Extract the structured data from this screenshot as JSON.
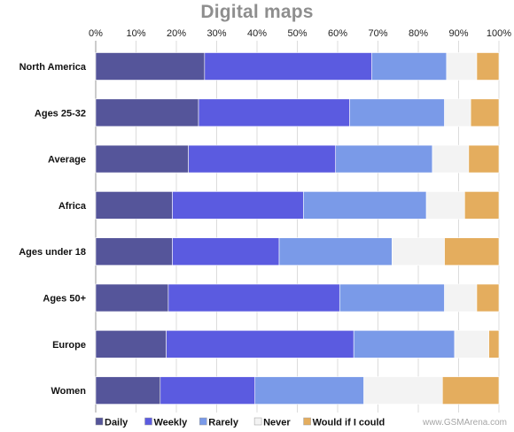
{
  "title": "Digital maps",
  "watermark": "www.GSMArena.com",
  "chart_data": {
    "type": "bar",
    "orientation": "horizontal",
    "stacked": "100%",
    "title": "Digital maps",
    "xlim": [
      0,
      100
    ],
    "xticks": [
      "0%",
      "10%",
      "20%",
      "30%",
      "40%",
      "50%",
      "60%",
      "70%",
      "80%",
      "90%",
      "100%"
    ],
    "x_axis_position": "top",
    "grid": true,
    "legend_position": "bottom",
    "categories": [
      "North America",
      "Ages 25-32",
      "Average",
      "Africa",
      "Ages under 18",
      "Ages 50+",
      "Europe",
      "Women"
    ],
    "series": [
      {
        "name": "Daily",
        "color": "#55559a",
        "values": [
          27,
          25.5,
          23,
          19,
          19,
          18,
          17.5,
          16
        ]
      },
      {
        "name": "Weekly",
        "color": "#5b5be0",
        "values": [
          41.5,
          37.5,
          36.5,
          32.5,
          26.5,
          42.5,
          46.5,
          23.5
        ]
      },
      {
        "name": "Rarely",
        "color": "#7a9ae8",
        "values": [
          18.5,
          23.5,
          24,
          30.5,
          28,
          26,
          25,
          27
        ]
      },
      {
        "name": "Never",
        "color": "#f3f3f3",
        "values": [
          7.5,
          6.5,
          9,
          9.5,
          13,
          8,
          8.5,
          19.5
        ]
      },
      {
        "name": "Would if I could",
        "color": "#e4ad5e",
        "values": [
          5.5,
          7,
          7.5,
          8.5,
          13.5,
          5.5,
          2.5,
          14
        ]
      }
    ]
  }
}
